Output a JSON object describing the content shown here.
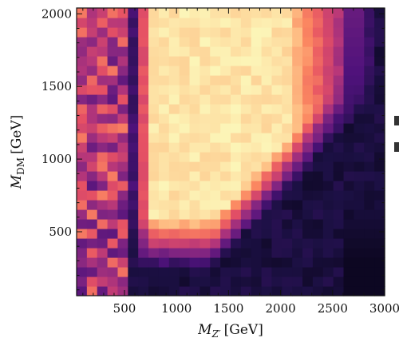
{
  "chart_data": {
    "type": "heatmap",
    "title": "",
    "xlabel": {
      "symbol": "M",
      "subscript": "Z′",
      "unit": "[GeV]"
    },
    "ylabel": {
      "symbol": "M",
      "subscript": "DM",
      "unit": "[GeV]"
    },
    "xlim": [
      40,
      3000
    ],
    "ylim": [
      60,
      2040
    ],
    "x_ticks": [
      500,
      1000,
      1500,
      2000,
      2500,
      3000
    ],
    "y_ticks": [
      500,
      1000,
      1500,
      2000
    ],
    "colormap": "magma",
    "color_scale_range": [
      0,
      1
    ],
    "colorbar_shown": false,
    "x_bin_count": 30,
    "y_bin_count": 30,
    "z_description": "Relative intensity (0 = dark purple/black, 1 = pale yellow)",
    "regions": [
      {
        "description": "Bright plateau",
        "x_range": [
          750,
          1750
        ],
        "y_range": [
          600,
          2000
        ],
        "z": 0.93
      },
      {
        "description": "Dark lower-right corner",
        "x_range": [
          2700,
          3000
        ],
        "y_range": [
          60,
          1200
        ],
        "z": 0.05
      },
      {
        "description": "Dark purple low-mass left band",
        "x_range": [
          40,
          700
        ],
        "y_range": [
          60,
          2000
        ],
        "z": 0.35
      }
    ]
  }
}
